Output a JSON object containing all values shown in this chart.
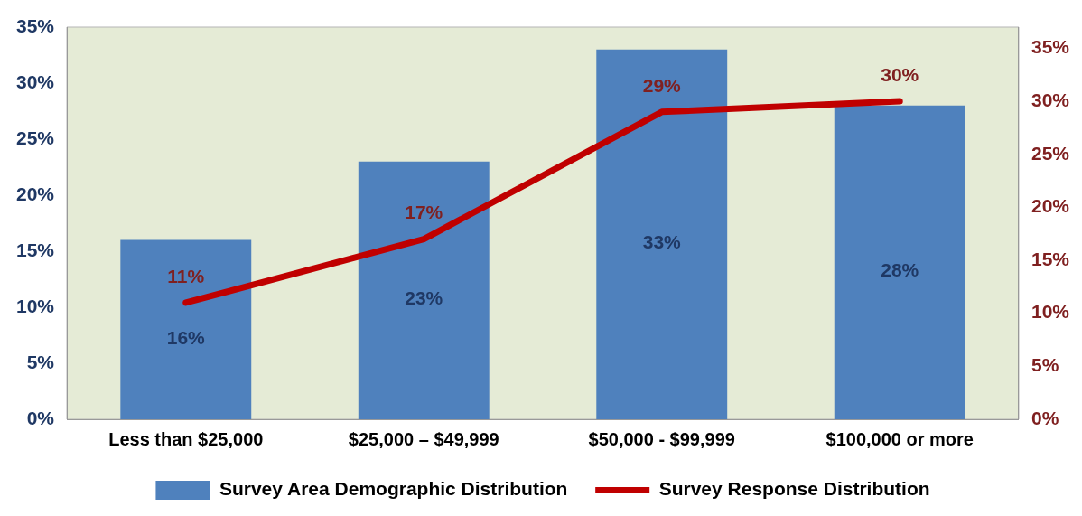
{
  "chart_data": {
    "type": "bar",
    "categories": [
      "Less than $25,000",
      "$25,000 – $49,999",
      "$50,000 - $99,999",
      "$100,000 or more"
    ],
    "series": [
      {
        "name": "Survey Area Demographic Distribution",
        "color": "#4f81bd",
        "values": [
          16,
          23,
          33,
          28
        ],
        "value_labels": [
          "16%",
          "23%",
          "33%",
          "28%"
        ]
      },
      {
        "name": "Survey Response Distribution",
        "type": "line",
        "axis": "y2",
        "color": "#c00000",
        "values": [
          11,
          17,
          29,
          30
        ],
        "value_labels": [
          "11%",
          "17%",
          "29%",
          "30%"
        ],
        "marker": "none"
      }
    ],
    "ylim": [
      0,
      35
    ],
    "yticks": [
      {
        "value": 0,
        "label": "0%"
      },
      {
        "value": 5,
        "label": "5%"
      },
      {
        "value": 10,
        "label": "10%"
      },
      {
        "value": 15,
        "label": "15%"
      },
      {
        "value": 20,
        "label": "20%"
      },
      {
        "value": 25,
        "label": "25%"
      },
      {
        "value": 30,
        "label": "30%"
      },
      {
        "value": 35,
        "label": "35%"
      }
    ],
    "y2lim": [
      0,
      37
    ],
    "y2ticks": [
      {
        "value": 0,
        "label": "0%"
      },
      {
        "value": 5,
        "label": "5%"
      },
      {
        "value": 10,
        "label": "10%"
      },
      {
        "value": 15,
        "label": "15%"
      },
      {
        "value": 20,
        "label": "20%"
      },
      {
        "value": 25,
        "label": "25%"
      },
      {
        "value": 30,
        "label": "30%"
      },
      {
        "value": 35,
        "label": "35%"
      }
    ],
    "grid": false,
    "legend": "bottom"
  }
}
